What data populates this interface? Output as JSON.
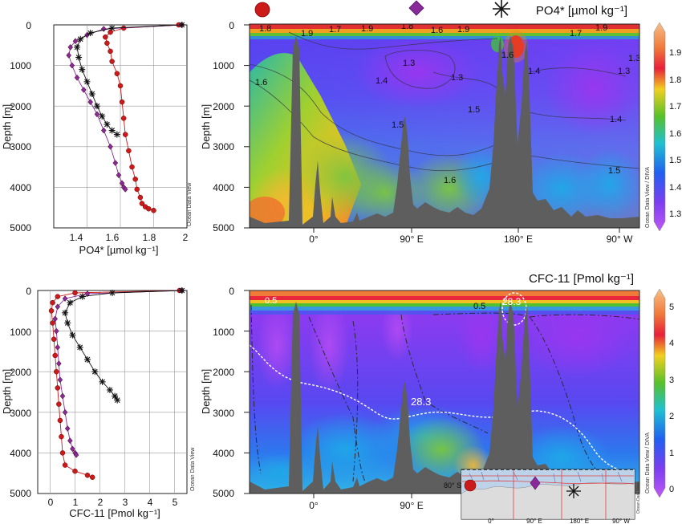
{
  "chart_data": [
    {
      "id": "po4_profile",
      "type": "line",
      "xlabel": "PO4* [µmol kg⁻¹]",
      "ylabel": "Depth [m]",
      "xlim": [
        1.2,
        2.0
      ],
      "ylim": [
        5000,
        0
      ],
      "xticks": [
        "1.4",
        "1.6",
        "1.8",
        "2"
      ],
      "yticks": [
        "0",
        "1000",
        "2000",
        "3000",
        "4000",
        "5000"
      ],
      "watermark": "Ocean Data View",
      "grid": true,
      "series": [
        {
          "marker": "circle",
          "color": "#cc1a1a",
          "x": [
            1.95,
            1.62,
            1.54,
            1.51,
            1.52,
            1.54,
            1.55,
            1.58,
            1.6,
            1.61,
            1.62,
            1.63,
            1.65,
            1.67,
            1.69,
            1.7,
            1.72,
            1.73,
            1.75,
            1.77,
            1.8
          ],
          "y": [
            0,
            80,
            180,
            300,
            450,
            650,
            900,
            1200,
            1500,
            1900,
            2300,
            2700,
            3100,
            3500,
            3800,
            4050,
            4250,
            4400,
            4480,
            4530,
            4570
          ]
        },
        {
          "marker": "diamond",
          "color": "#8a2a9a",
          "x": [
            1.97,
            1.5,
            1.4,
            1.33,
            1.3,
            1.29,
            1.31,
            1.34,
            1.38,
            1.42,
            1.46,
            1.5,
            1.54,
            1.57,
            1.59,
            1.61,
            1.62,
            1.63
          ],
          "y": [
            0,
            100,
            250,
            400,
            550,
            750,
            1000,
            1300,
            1600,
            1900,
            2200,
            2600,
            3000,
            3400,
            3700,
            3900,
            4000,
            4050
          ]
        },
        {
          "marker": "asterisk",
          "color": "#111111",
          "x": [
            1.97,
            1.55,
            1.42,
            1.36,
            1.34,
            1.35,
            1.37,
            1.4,
            1.43,
            1.46,
            1.49,
            1.52,
            1.55,
            1.58
          ],
          "y": [
            0,
            80,
            200,
            350,
            550,
            800,
            1100,
            1400,
            1700,
            2000,
            2250,
            2450,
            2600,
            2700
          ]
        }
      ]
    },
    {
      "id": "po4_section",
      "type": "heatmap",
      "title": "PO4* [µmol kg⁻¹]",
      "ylabel": "Depth [m]",
      "ylim": [
        5000,
        0
      ],
      "yticks": [
        "0",
        "1000",
        "2000",
        "3000",
        "4000",
        "5000"
      ],
      "xticks": [
        "0°",
        "90° E",
        "180° E",
        "90° W"
      ],
      "colorbar": {
        "min": 1.3,
        "max": 1.9,
        "ticks": [
          "1.9",
          "1.8",
          "1.7",
          "1.6",
          "1.5",
          "1.4",
          "1.3"
        ]
      },
      "contour_labels": [
        "1.8",
        "1.9",
        "1.7",
        "1.9",
        "1.8",
        "1.6",
        "1.9",
        "1.7",
        "1.9",
        "1.3",
        "1.3",
        "1.4",
        "1.3",
        "1.6",
        "1.6",
        "1.4",
        "1.3",
        "1.5",
        "1.5",
        "1.4",
        "1.6",
        "1.5"
      ],
      "watermark": "Ocean Data View / DIVA"
    },
    {
      "id": "cfc_profile",
      "type": "line",
      "xlabel": "CFC-11 [Pmol kg⁻¹]",
      "ylabel": "Depth [m]",
      "xlim": [
        -0.5,
        5.5
      ],
      "ylim": [
        5000,
        0
      ],
      "xticks": [
        "0",
        "1",
        "2",
        "3",
        "4",
        "5"
      ],
      "yticks": [
        "0",
        "1000",
        "2000",
        "3000",
        "4000",
        "5000"
      ],
      "watermark": "Ocean Data View",
      "grid": true,
      "series": [
        {
          "marker": "circle",
          "color": "#cc1a1a",
          "x": [
            5.2,
            1.0,
            0.3,
            0.1,
            0.05,
            0.1,
            0.15,
            0.2,
            0.25,
            0.3,
            0.35,
            0.4,
            0.45,
            0.5,
            0.6,
            1.0,
            1.5,
            1.7
          ],
          "y": [
            0,
            60,
            150,
            300,
            500,
            800,
            1200,
            1600,
            2000,
            2400,
            2800,
            3200,
            3600,
            4000,
            4300,
            4450,
            4550,
            4600
          ]
        },
        {
          "marker": "diamond",
          "color": "#8a2a9a",
          "x": [
            5.3,
            1.5,
            0.6,
            0.3,
            0.2,
            0.25,
            0.3,
            0.35,
            0.4,
            0.5,
            0.6,
            0.7,
            0.8,
            0.9,
            1.0,
            1.05
          ],
          "y": [
            0,
            80,
            200,
            400,
            700,
            1000,
            1400,
            1800,
            2200,
            2600,
            3000,
            3400,
            3700,
            3900,
            4000,
            4050
          ]
        },
        {
          "marker": "asterisk",
          "color": "#111111",
          "x": [
            5.3,
            2.5,
            1.3,
            0.8,
            0.6,
            0.7,
            0.9,
            1.2,
            1.5,
            1.8,
            2.1,
            2.4,
            2.6,
            2.7
          ],
          "y": [
            0,
            60,
            150,
            300,
            550,
            800,
            1100,
            1400,
            1700,
            2000,
            2250,
            2450,
            2600,
            2700
          ]
        }
      ]
    },
    {
      "id": "cfc_section",
      "type": "heatmap",
      "title": "CFC-11 [Pmol kg⁻¹]",
      "ylabel": "Depth [m]",
      "ylim": [
        5000,
        0
      ],
      "yticks": [
        "0",
        "1000",
        "2000",
        "3000",
        "4000",
        "5000"
      ],
      "xticks": [
        "0°",
        "90° E",
        "180° E",
        "90° W"
      ],
      "colorbar": {
        "min": 0,
        "max": 5,
        "ticks": [
          "5",
          "4",
          "3",
          "2",
          "1",
          "0"
        ]
      },
      "contour_labels": [
        "0.5",
        "0.5",
        "28.3",
        "28.3"
      ],
      "watermark": "Ocean Data View / DIVA",
      "inset_map": {
        "lat_label": "80° S",
        "lon_labels": [
          "0°",
          "90° E",
          "180° E",
          "90° W"
        ],
        "watermark": "Ocean Data View"
      }
    }
  ],
  "legend_markers": [
    {
      "shape": "circle",
      "color": "#cc1a1a"
    },
    {
      "shape": "diamond",
      "color": "#8a2a9a"
    },
    {
      "shape": "asterisk",
      "color": "#111111"
    }
  ]
}
